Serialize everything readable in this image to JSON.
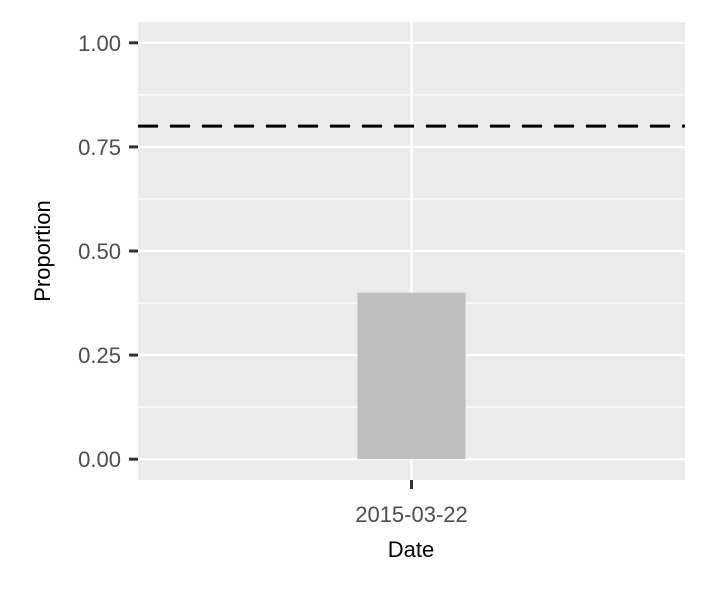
{
  "chart_data": {
    "type": "bar",
    "categories": [
      "2015-03-22"
    ],
    "values": [
      0.4
    ],
    "xlabel": "Date",
    "ylabel": "Proportion",
    "ylim": [
      -0.05,
      1.05
    ],
    "yticks": [
      0.0,
      0.25,
      0.5,
      0.75,
      1.0
    ],
    "ytick_labels": [
      "0.00",
      "0.25",
      "0.50",
      "0.75",
      "1.00"
    ],
    "reference_line": {
      "y": 0.8,
      "style": "dashed",
      "color": "#000000"
    },
    "grid": true,
    "legend": "none",
    "colors": {
      "panel_background": "#ebebeb",
      "grid_major": "#ffffff",
      "bar_fill": "#bebebe",
      "tick_mark": "#333333"
    }
  }
}
